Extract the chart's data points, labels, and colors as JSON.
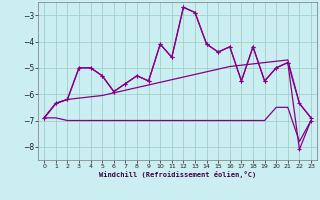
{
  "xlabel": "Windchill (Refroidissement éolien,°C)",
  "background_color": "#cbeef3",
  "line_color": "#880088",
  "grid_color": "#99ccbb",
  "xlim": [
    -0.5,
    23.5
  ],
  "ylim": [
    -8.5,
    -2.5
  ],
  "yticks": [
    -8,
    -7,
    -6,
    -5,
    -4,
    -3
  ],
  "xticks": [
    0,
    1,
    2,
    3,
    4,
    5,
    6,
    7,
    8,
    9,
    10,
    11,
    12,
    13,
    14,
    15,
    16,
    17,
    18,
    19,
    20,
    21,
    22,
    23
  ],
  "line1_x": [
    0,
    1,
    2,
    3,
    4,
    5,
    6,
    7,
    8,
    9,
    10,
    11,
    12,
    13,
    14,
    15,
    16,
    17,
    18,
    19,
    20,
    21,
    22,
    23
  ],
  "line1_y": [
    -6.9,
    -6.35,
    -6.2,
    -6.15,
    -6.1,
    -6.05,
    -5.95,
    -5.85,
    -5.75,
    -5.65,
    -5.55,
    -5.45,
    -5.35,
    -5.25,
    -5.15,
    -5.05,
    -4.95,
    -4.9,
    -4.85,
    -4.8,
    -4.75,
    -4.7,
    -6.35,
    -6.9
  ],
  "line2_x": [
    0,
    1,
    2,
    3,
    4,
    5,
    6,
    7,
    8,
    9,
    10,
    11,
    12,
    13,
    14,
    15,
    16,
    17,
    18,
    19,
    20,
    21,
    22,
    23
  ],
  "line2_y": [
    -6.9,
    -6.35,
    -6.2,
    -5.0,
    -5.0,
    -5.3,
    -5.9,
    -5.6,
    -5.3,
    -5.5,
    -4.1,
    -4.6,
    -2.7,
    -2.9,
    -4.1,
    -4.4,
    -4.2,
    -5.5,
    -4.2,
    -5.5,
    -5.0,
    -4.8,
    -6.35,
    -6.9
  ],
  "line3_x": [
    0,
    1,
    2,
    3,
    4,
    5,
    6,
    7,
    8,
    9,
    10,
    11,
    12,
    13,
    14,
    15,
    16,
    17,
    18,
    19,
    20,
    21,
    22,
    23
  ],
  "line3_y": [
    -6.9,
    -6.35,
    -6.2,
    -5.0,
    -5.0,
    -5.3,
    -5.9,
    -5.6,
    -5.3,
    -5.5,
    -4.1,
    -4.6,
    -2.7,
    -2.9,
    -4.1,
    -4.4,
    -4.2,
    -5.5,
    -4.2,
    -5.5,
    -5.0,
    -4.8,
    -8.1,
    -7.0
  ],
  "line4_x": [
    0,
    1,
    2,
    3,
    4,
    5,
    6,
    7,
    8,
    9,
    10,
    11,
    12,
    13,
    14,
    15,
    16,
    17,
    18,
    19,
    20,
    21,
    22,
    23
  ],
  "line4_y": [
    -6.9,
    -6.9,
    -7.0,
    -7.0,
    -7.0,
    -7.0,
    -7.0,
    -7.0,
    -7.0,
    -7.0,
    -7.0,
    -7.0,
    -7.0,
    -7.0,
    -7.0,
    -7.0,
    -7.0,
    -7.0,
    -7.0,
    -7.0,
    -6.5,
    -6.5,
    -7.8,
    -7.0
  ]
}
